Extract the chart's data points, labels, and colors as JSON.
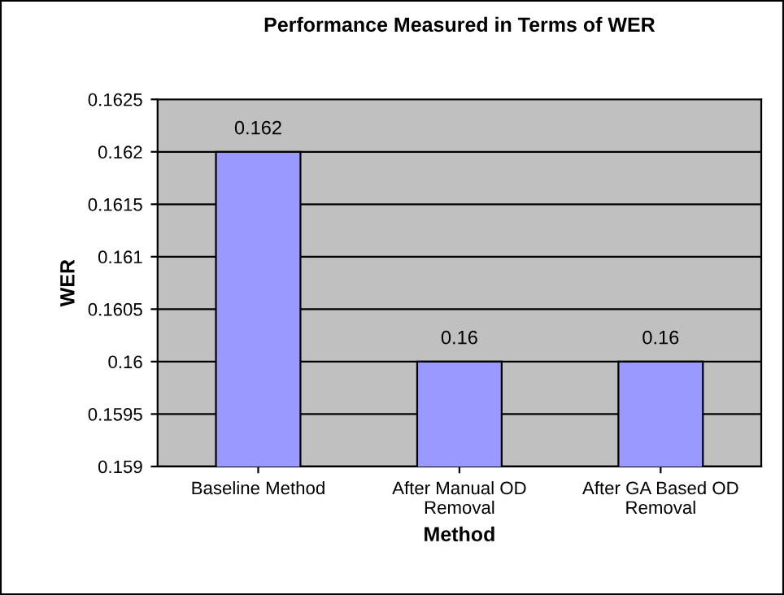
{
  "chart_data": {
    "type": "bar",
    "title": "Performance Measured in Terms of WER",
    "xlabel": "Method",
    "ylabel": "WER",
    "categories": [
      "Baseline Method",
      "After Manual OD\nRemoval",
      "After GA Based OD\nRemoval"
    ],
    "values": [
      0.162,
      0.16,
      0.16
    ],
    "color": "#9999ff",
    "ylim": [
      0.159,
      0.1625
    ],
    "yticks": [
      0.159,
      0.1595,
      0.16,
      0.1605,
      0.161,
      0.1615,
      0.162,
      0.1625
    ],
    "grid": "y",
    "data_labels": true,
    "legend": false
  }
}
